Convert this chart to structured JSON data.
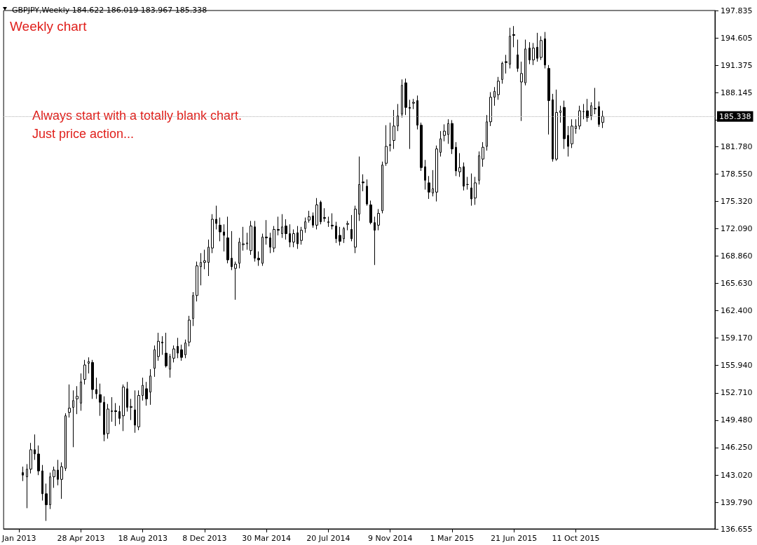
{
  "chart_data": {
    "type": "candlestick",
    "title": "GBPJPY,Weekly 184.622 186.019 183.967 185.338",
    "color": "#000000",
    "annotations": [
      "Weekly chart",
      "Always start with a totally blank chart.",
      "Just price action..."
    ],
    "xlim": [
      "2012-12-09",
      "2016-06-19"
    ],
    "xticks": [
      {
        "value": "2013-01-06",
        "label": "Jan 2013"
      },
      {
        "value": "2013-04-28",
        "label": "28 Apr 2013"
      },
      {
        "value": "2013-08-18",
        "label": "18 Aug 2013"
      },
      {
        "value": "2013-12-08",
        "label": "8 Dec 2013"
      },
      {
        "value": "2014-03-30",
        "label": "30 Mar 2014"
      },
      {
        "value": "2014-07-20",
        "label": "20 Jul 2014"
      },
      {
        "value": "2014-11-09",
        "label": "9 Nov 2014"
      },
      {
        "value": "2015-03-01",
        "label": "1 Mar 2015"
      },
      {
        "value": "2015-06-21",
        "label": "21 Jun 2015"
      },
      {
        "value": "2015-10-11",
        "label": "11 Oct 2015"
      }
    ],
    "ylim": [
      136.655,
      197.835
    ],
    "yticks": [
      136.655,
      {
        "value": 139.79,
        "label": "139.790"
      },
      {
        "value": 143.02,
        "label": "143.020"
      },
      {
        "value": 146.25,
        "label": "146.250"
      },
      {
        "value": 149.48,
        "label": "149.480"
      },
      {
        "value": 152.71,
        "label": "152.710"
      },
      {
        "value": 155.94,
        "label": "155.940"
      },
      {
        "value": 159.17,
        "label": "159.170"
      },
      {
        "value": 162.4,
        "label": "162.400"
      },
      {
        "value": 165.63,
        "label": "165.630"
      },
      {
        "value": 168.86,
        "label": "168.860"
      },
      {
        "value": 172.09,
        "label": "172.090"
      },
      {
        "value": 175.32,
        "label": "175.320"
      },
      {
        "value": 178.55,
        "label": "178.550"
      },
      {
        "value": 181.78,
        "label": "181.780"
      },
      {
        "value": 184.915,
        "label": null
      },
      188.145,
      191.375,
      194.605,
      197.835
    ],
    "ref_lines": [
      {
        "axis": "y",
        "value": 185.338,
        "label": "185.338"
      }
    ],
    "x": [
      "2013-01-13",
      "2013-01-20",
      "2013-01-27",
      "2013-02-03",
      "2013-02-10",
      "2013-02-17",
      "2013-02-24",
      "2013-03-03",
      "2013-03-10",
      "2013-03-17",
      "2013-03-24",
      "2013-03-31",
      "2013-04-07",
      "2013-04-14",
      "2013-04-21",
      "2013-04-28",
      "2013-05-05",
      "2013-05-12",
      "2013-05-19",
      "2013-05-26",
      "2013-06-02",
      "2013-06-09",
      "2013-06-16",
      "2013-06-23",
      "2013-06-30",
      "2013-07-07",
      "2013-07-14",
      "2013-07-21",
      "2013-07-28",
      "2013-08-04",
      "2013-08-11",
      "2013-08-18",
      "2013-08-25",
      "2013-09-01",
      "2013-09-08",
      "2013-09-15",
      "2013-09-22",
      "2013-09-29",
      "2013-10-06",
      "2013-10-13",
      "2013-10-20",
      "2013-10-27",
      "2013-11-03",
      "2013-11-10",
      "2013-11-17",
      "2013-11-24",
      "2013-12-01",
      "2013-12-08",
      "2013-12-15",
      "2013-12-22",
      "2013-12-29",
      "2014-01-05",
      "2014-01-12",
      "2014-01-19",
      "2014-01-26",
      "2014-02-02",
      "2014-02-09",
      "2014-02-16",
      "2014-02-23",
      "2014-03-02",
      "2014-03-09",
      "2014-03-16",
      "2014-03-23",
      "2014-03-30",
      "2014-04-06",
      "2014-04-13",
      "2014-04-20",
      "2014-04-27",
      "2014-05-04",
      "2014-05-11",
      "2014-05-18",
      "2014-05-25",
      "2014-06-01",
      "2014-06-08",
      "2014-06-15",
      "2014-06-22",
      "2014-06-29",
      "2014-07-06",
      "2014-07-13",
      "2014-07-20",
      "2014-07-27",
      "2014-08-03",
      "2014-08-10",
      "2014-08-17",
      "2014-08-24",
      "2014-08-31",
      "2014-09-07",
      "2014-09-14",
      "2014-09-21",
      "2014-09-28",
      "2014-10-05",
      "2014-10-12",
      "2014-10-19",
      "2014-10-26",
      "2014-11-02",
      "2014-11-09",
      "2014-11-16",
      "2014-11-23",
      "2014-11-30",
      "2014-12-07",
      "2014-12-14",
      "2014-12-21",
      "2014-12-28",
      "2015-01-04",
      "2015-01-11",
      "2015-01-18",
      "2015-01-25",
      "2015-02-01",
      "2015-02-08",
      "2015-02-15",
      "2015-02-22",
      "2015-03-01",
      "2015-03-08",
      "2015-03-15",
      "2015-03-22",
      "2015-03-29",
      "2015-04-05",
      "2015-04-12",
      "2015-04-19",
      "2015-04-26",
      "2015-05-03",
      "2015-05-10",
      "2015-05-17",
      "2015-05-24",
      "2015-05-31",
      "2015-06-07",
      "2015-06-14",
      "2015-06-21",
      "2015-06-28",
      "2015-07-05",
      "2015-07-12",
      "2015-07-19",
      "2015-07-26",
      "2015-08-02",
      "2015-08-09",
      "2015-08-16",
      "2015-08-23",
      "2015-08-30",
      "2015-09-06",
      "2015-09-13",
      "2015-09-20",
      "2015-09-27",
      "2015-10-04",
      "2015-10-11",
      "2015-10-18",
      "2015-10-25",
      "2015-11-01",
      "2015-11-08",
      "2015-11-15",
      "2015-11-22",
      "2015-11-29"
    ],
    "ohlc": [
      [
        143.3,
        144.0,
        142.3,
        143.0
      ],
      [
        142.8,
        144.3,
        139.1,
        143.7
      ],
      [
        143.7,
        146.8,
        143.2,
        146.0
      ],
      [
        146.0,
        147.8,
        144.8,
        145.5
      ],
      [
        145.5,
        146.5,
        143.0,
        143.5
      ],
      [
        143.5,
        144.2,
        140.0,
        140.8
      ],
      [
        140.8,
        142.0,
        137.6,
        139.5
      ],
      [
        139.5,
        143.3,
        139.0,
        142.8
      ],
      [
        142.8,
        144.0,
        141.5,
        143.6
      ],
      [
        143.6,
        144.8,
        141.8,
        142.5
      ],
      [
        142.5,
        144.5,
        140.2,
        144.0
      ],
      [
        143.8,
        150.3,
        143.5,
        150.0
      ],
      [
        150.4,
        153.7,
        149.8,
        150.9
      ],
      [
        151.0,
        153.0,
        146.3,
        151.8
      ],
      [
        152.0,
        153.5,
        150.2,
        152.3
      ],
      [
        151.5,
        155.0,
        150.6,
        154.0
      ],
      [
        154.3,
        156.6,
        153.7,
        156.0
      ],
      [
        156.2,
        156.9,
        155.0,
        156.4
      ],
      [
        156.3,
        156.6,
        152.0,
        153.1
      ],
      [
        153.1,
        154.5,
        152.0,
        152.6
      ],
      [
        152.5,
        153.8,
        150.0,
        151.6
      ],
      [
        151.6,
        152.3,
        147.0,
        147.8
      ],
      [
        147.9,
        151.4,
        147.3,
        150.8
      ],
      [
        150.5,
        152.2,
        149.3,
        150.6
      ],
      [
        150.6,
        151.5,
        148.8,
        150.5
      ],
      [
        150.5,
        151.2,
        149.0,
        149.7
      ],
      [
        150.0,
        153.7,
        148.2,
        153.4
      ],
      [
        153.2,
        154.0,
        150.5,
        151.0
      ],
      [
        151.0,
        152.0,
        149.5,
        151.1
      ],
      [
        150.7,
        153.0,
        148.0,
        148.9
      ],
      [
        148.7,
        153.0,
        148.3,
        152.4
      ],
      [
        152.4,
        154.5,
        151.8,
        153.6
      ],
      [
        153.2,
        154.0,
        151.2,
        152.0
      ],
      [
        152.8,
        155.5,
        151.3,
        154.7
      ],
      [
        155.6,
        158.3,
        154.6,
        157.8
      ],
      [
        157.0,
        159.8,
        156.5,
        158.8
      ],
      [
        158.7,
        159.4,
        157.2,
        158.6
      ],
      [
        157.4,
        159.8,
        155.7,
        155.9
      ],
      [
        155.5,
        157.3,
        154.5,
        157.0
      ],
      [
        156.8,
        158.3,
        156.3,
        157.9
      ],
      [
        158.2,
        159.2,
        156.8,
        157.4
      ],
      [
        157.8,
        158.4,
        156.5,
        156.9
      ],
      [
        157.2,
        159.0,
        156.8,
        158.6
      ],
      [
        158.7,
        161.8,
        158.2,
        161.3
      ],
      [
        161.5,
        164.6,
        160.6,
        164.2
      ],
      [
        164.2,
        168.2,
        163.5,
        167.7
      ],
      [
        167.6,
        169.2,
        165.4,
        168.1
      ],
      [
        168.1,
        169.6,
        167.3,
        168.3
      ],
      [
        168.1,
        170.8,
        166.5,
        169.9
      ],
      [
        169.8,
        173.8,
        169.2,
        173.2
      ],
      [
        173.2,
        174.8,
        172.0,
        172.7
      ],
      [
        172.5,
        173.4,
        170.6,
        171.7
      ],
      [
        171.7,
        172.6,
        169.4,
        171.3
      ],
      [
        171.0,
        173.5,
        168.0,
        168.4
      ],
      [
        168.6,
        171.8,
        167.2,
        167.6
      ],
      [
        167.4,
        168.2,
        163.7,
        167.9
      ],
      [
        168.0,
        171.0,
        167.4,
        170.5
      ],
      [
        170.2,
        172.3,
        169.5,
        170.3
      ],
      [
        170.3,
        171.6,
        169.6,
        170.4
      ],
      [
        169.5,
        173.0,
        169.0,
        172.4
      ],
      [
        172.3,
        173.0,
        168.2,
        168.6
      ],
      [
        168.6,
        169.4,
        167.7,
        168.4
      ],
      [
        168.0,
        171.5,
        167.7,
        171.1
      ],
      [
        171.1,
        173.1,
        170.2,
        171.0
      ],
      [
        171.0,
        171.6,
        169.2,
        169.9
      ],
      [
        169.8,
        172.4,
        169.3,
        172.0
      ],
      [
        172.0,
        173.5,
        171.3,
        171.9
      ],
      [
        171.5,
        173.8,
        171.0,
        172.3
      ],
      [
        172.4,
        173.2,
        170.8,
        171.5
      ],
      [
        171.5,
        172.6,
        169.9,
        170.5
      ],
      [
        170.5,
        172.0,
        169.9,
        171.5
      ],
      [
        171.6,
        172.4,
        169.7,
        170.3
      ],
      [
        170.7,
        172.3,
        170.2,
        171.9
      ],
      [
        172.1,
        173.4,
        171.6,
        172.9
      ],
      [
        173.1,
        174.2,
        172.8,
        173.5
      ],
      [
        173.6,
        174.0,
        172.2,
        172.5
      ],
      [
        172.5,
        175.7,
        172.0,
        174.9
      ],
      [
        175.2,
        175.4,
        172.6,
        172.9
      ],
      [
        173.4,
        174.5,
        172.9,
        173.3
      ],
      [
        172.8,
        173.5,
        172.3,
        172.9
      ],
      [
        172.5,
        173.9,
        172.0,
        172.4
      ],
      [
        172.4,
        172.9,
        170.4,
        170.9
      ],
      [
        171.3,
        172.3,
        170.1,
        170.6
      ],
      [
        170.9,
        172.3,
        170.4,
        172.1
      ],
      [
        172.6,
        173.0,
        171.9,
        172.7
      ],
      [
        172.0,
        173.7,
        170.6,
        170.9
      ],
      [
        169.9,
        174.8,
        169.2,
        174.4
      ],
      [
        173.8,
        180.6,
        173.0,
        177.3
      ],
      [
        177.6,
        178.5,
        176.5,
        177.5
      ],
      [
        177.1,
        177.9,
        174.8,
        175.0
      ],
      [
        174.9,
        175.4,
        172.6,
        172.8
      ],
      [
        172.8,
        173.5,
        167.8,
        171.9
      ],
      [
        172.5,
        174.4,
        171.9,
        173.9
      ],
      [
        174.2,
        180.0,
        173.9,
        179.6
      ],
      [
        179.8,
        184.3,
        179.5,
        181.8
      ],
      [
        181.9,
        184.6,
        181.2,
        182.0
      ],
      [
        182.5,
        186.1,
        181.5,
        184.2
      ],
      [
        184.2,
        186.8,
        183.6,
        185.4
      ],
      [
        185.6,
        189.7,
        185.2,
        189.0
      ],
      [
        189.3,
        189.8,
        185.5,
        186.4
      ],
      [
        186.4,
        187.3,
        181.5,
        186.3
      ],
      [
        186.9,
        187.4,
        186.2,
        187.0
      ],
      [
        187.2,
        187.8,
        183.8,
        184.3
      ],
      [
        184.3,
        184.6,
        178.9,
        179.3
      ],
      [
        179.4,
        180.2,
        176.7,
        177.8
      ],
      [
        177.5,
        178.3,
        175.6,
        176.4
      ],
      [
        176.3,
        179.0,
        175.9,
        176.8
      ],
      [
        176.4,
        181.9,
        175.3,
        181.5
      ],
      [
        181.1,
        183.6,
        180.6,
        182.7
      ],
      [
        183.1,
        184.4,
        182.4,
        183.6
      ],
      [
        183.2,
        185.0,
        182.1,
        184.5
      ],
      [
        184.5,
        184.9,
        180.9,
        181.5
      ],
      [
        181.7,
        182.3,
        178.3,
        178.9
      ],
      [
        178.8,
        181.0,
        178.2,
        179.3
      ],
      [
        179.4,
        179.9,
        176.6,
        177.1
      ],
      [
        177.3,
        178.2,
        176.7,
        177.3
      ],
      [
        176.9,
        178.6,
        174.8,
        175.6
      ],
      [
        175.7,
        178.2,
        174.9,
        177.5
      ],
      [
        177.8,
        181.2,
        177.3,
        180.7
      ],
      [
        180.3,
        182.3,
        179.4,
        181.7
      ],
      [
        181.8,
        185.5,
        181.3,
        184.7
      ],
      [
        184.7,
        188.2,
        184.2,
        187.6
      ],
      [
        187.6,
        188.8,
        186.6,
        188.3
      ],
      [
        187.9,
        190.0,
        187.3,
        189.5
      ],
      [
        189.7,
        191.8,
        189.2,
        191.6
      ],
      [
        191.8,
        192.6,
        190.4,
        191.7
      ],
      [
        191.5,
        195.8,
        191.0,
        194.8
      ],
      [
        195.0,
        196.0,
        193.5,
        194.9
      ],
      [
        192.6,
        194.4,
        190.6,
        191.0
      ],
      [
        189.4,
        191.8,
        184.8,
        190.4
      ],
      [
        189.3,
        194.4,
        189.0,
        193.3
      ],
      [
        193.4,
        194.1,
        191.5,
        192.0
      ],
      [
        192.0,
        194.0,
        191.4,
        193.4
      ],
      [
        193.5,
        195.2,
        191.8,
        192.2
      ],
      [
        192.3,
        194.8,
        192.0,
        194.3
      ],
      [
        194.5,
        195.3,
        191.0,
        191.4
      ],
      [
        191.0,
        191.4,
        183.2,
        187.2
      ],
      [
        187.3,
        188.0,
        180.0,
        180.3
      ],
      [
        180.3,
        188.5,
        180.1,
        185.8
      ],
      [
        185.8,
        186.6,
        184.6,
        186.0
      ],
      [
        186.4,
        187.2,
        181.5,
        182.7
      ],
      [
        183.1,
        184.2,
        180.6,
        181.8
      ],
      [
        182.1,
        185.0,
        181.6,
        184.2
      ],
      [
        183.9,
        185.0,
        183.3,
        184.2
      ],
      [
        184.2,
        186.6,
        183.8,
        186.0
      ],
      [
        185.9,
        186.8,
        185.0,
        185.9
      ],
      [
        186.0,
        187.4,
        184.7,
        185.2
      ],
      [
        185.4,
        187.0,
        184.9,
        186.6
      ],
      [
        186.2,
        188.7,
        185.6,
        186.3
      ],
      [
        186.5,
        187.1,
        184.1,
        184.4
      ],
      [
        184.622,
        186.019,
        183.967,
        185.338
      ]
    ]
  }
}
